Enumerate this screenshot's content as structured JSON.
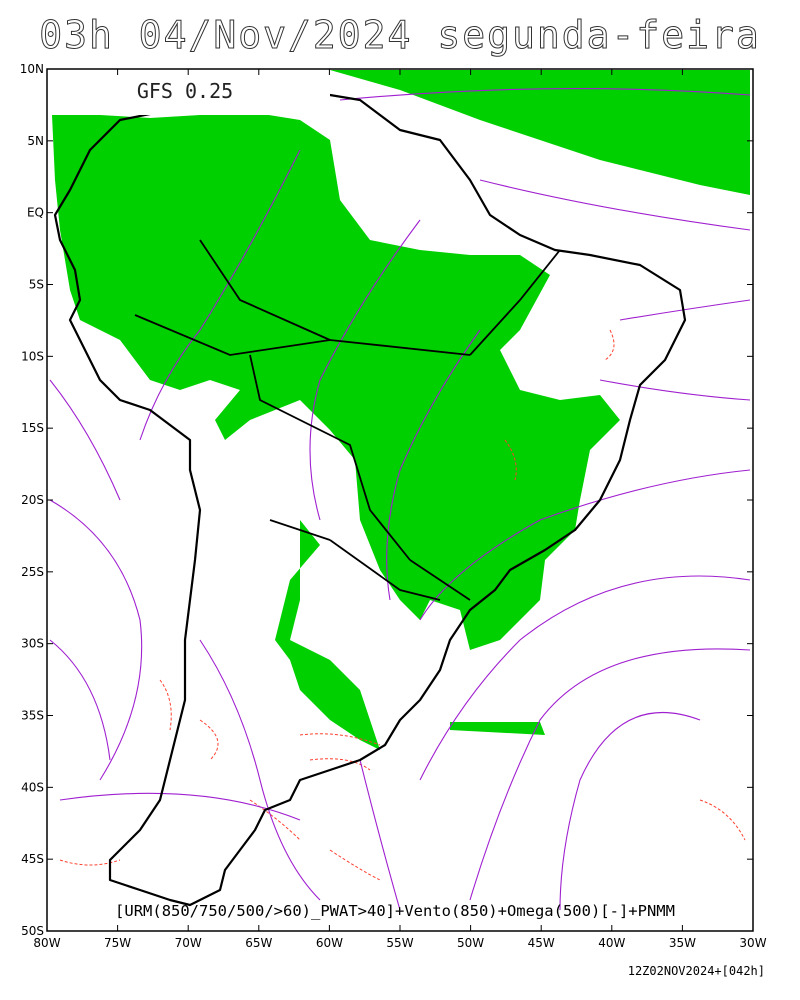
{
  "header": {
    "title": "03h 04/Nov/2024 segunda-feira"
  },
  "map": {
    "model_label": "GFS 0.25",
    "caption": "[URM(850/750/500/>60)_PWAT>40]+Vento(850)+Omega(500)[-]+PNMM",
    "run_label": "12Z02NOV2024+[042h]",
    "lat_range": [
      -50,
      10
    ],
    "lon_range": [
      -80,
      -30
    ],
    "lat_ticks": [
      {
        "value": 10,
        "label": "10N"
      },
      {
        "value": 5,
        "label": "5N"
      },
      {
        "value": 0,
        "label": "EQ"
      },
      {
        "value": -5,
        "label": "5S"
      },
      {
        "value": -10,
        "label": "10S"
      },
      {
        "value": -15,
        "label": "15S"
      },
      {
        "value": -20,
        "label": "20S"
      },
      {
        "value": -25,
        "label": "25S"
      },
      {
        "value": -30,
        "label": "30S"
      },
      {
        "value": -35,
        "label": "35S"
      },
      {
        "value": -40,
        "label": "40S"
      },
      {
        "value": -45,
        "label": "45S"
      },
      {
        "value": -50,
        "label": "50S"
      }
    ],
    "lon_ticks": [
      {
        "value": -80,
        "label": "80W"
      },
      {
        "value": -75,
        "label": "75W"
      },
      {
        "value": -70,
        "label": "70W"
      },
      {
        "value": -65,
        "label": "65W"
      },
      {
        "value": -60,
        "label": "60W"
      },
      {
        "value": -55,
        "label": "55W"
      },
      {
        "value": -50,
        "label": "50W"
      },
      {
        "value": -45,
        "label": "45W"
      },
      {
        "value": -40,
        "label": "40W"
      },
      {
        "value": -35,
        "label": "35W"
      },
      {
        "value": -30,
        "label": "30W"
      }
    ]
  }
}
